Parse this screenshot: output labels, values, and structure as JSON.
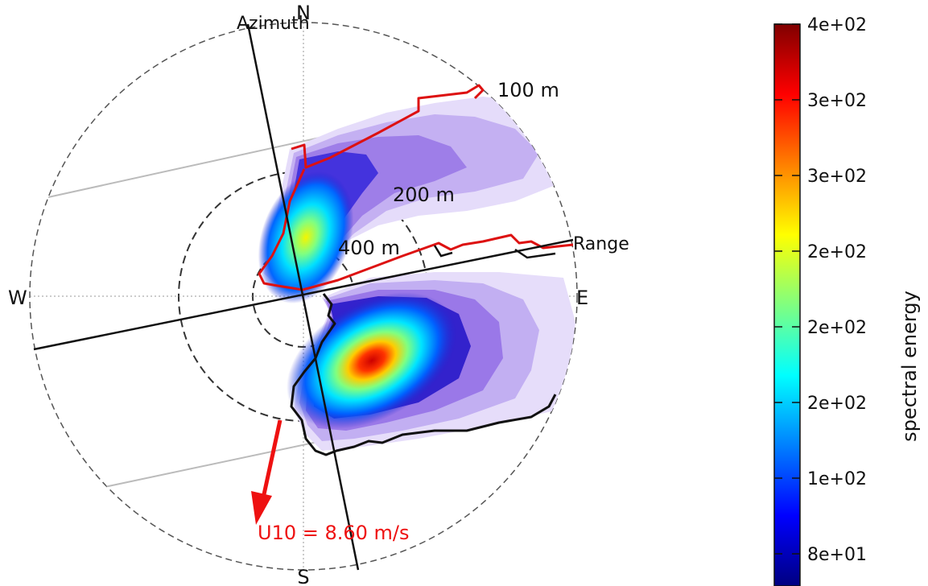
{
  "chart_data": {
    "type": "heatmap",
    "projection": "polar",
    "compass": {
      "north": "N",
      "south": "S",
      "east": "E",
      "west": "W"
    },
    "axis_labels": {
      "azimuth": "Azimuth",
      "range": "Range"
    },
    "ring_labels": [
      "100 m",
      "200 m",
      "400 m"
    ],
    "wind_annotation": "U10 = 8.60 m/s",
    "colorbar": {
      "label": "spectral energy",
      "tick_labels": [
        "4e+02",
        "3e+02",
        "3e+02",
        "2e+02",
        "2e+02",
        "2e+02",
        "1e+02",
        "8e+01"
      ],
      "colormap": [
        "#000080",
        "#0000ff",
        "#0080ff",
        "#00ffff",
        "#80ff80",
        "#ffff00",
        "#ff8000",
        "#ff0000",
        "#800000"
      ]
    },
    "grid": true,
    "colors": {
      "wind_arrow": "#ee1111",
      "contour_upper": "#dd1111",
      "contour_lower": "#111111",
      "spectrum_lobes": "#8a5ce0"
    }
  }
}
